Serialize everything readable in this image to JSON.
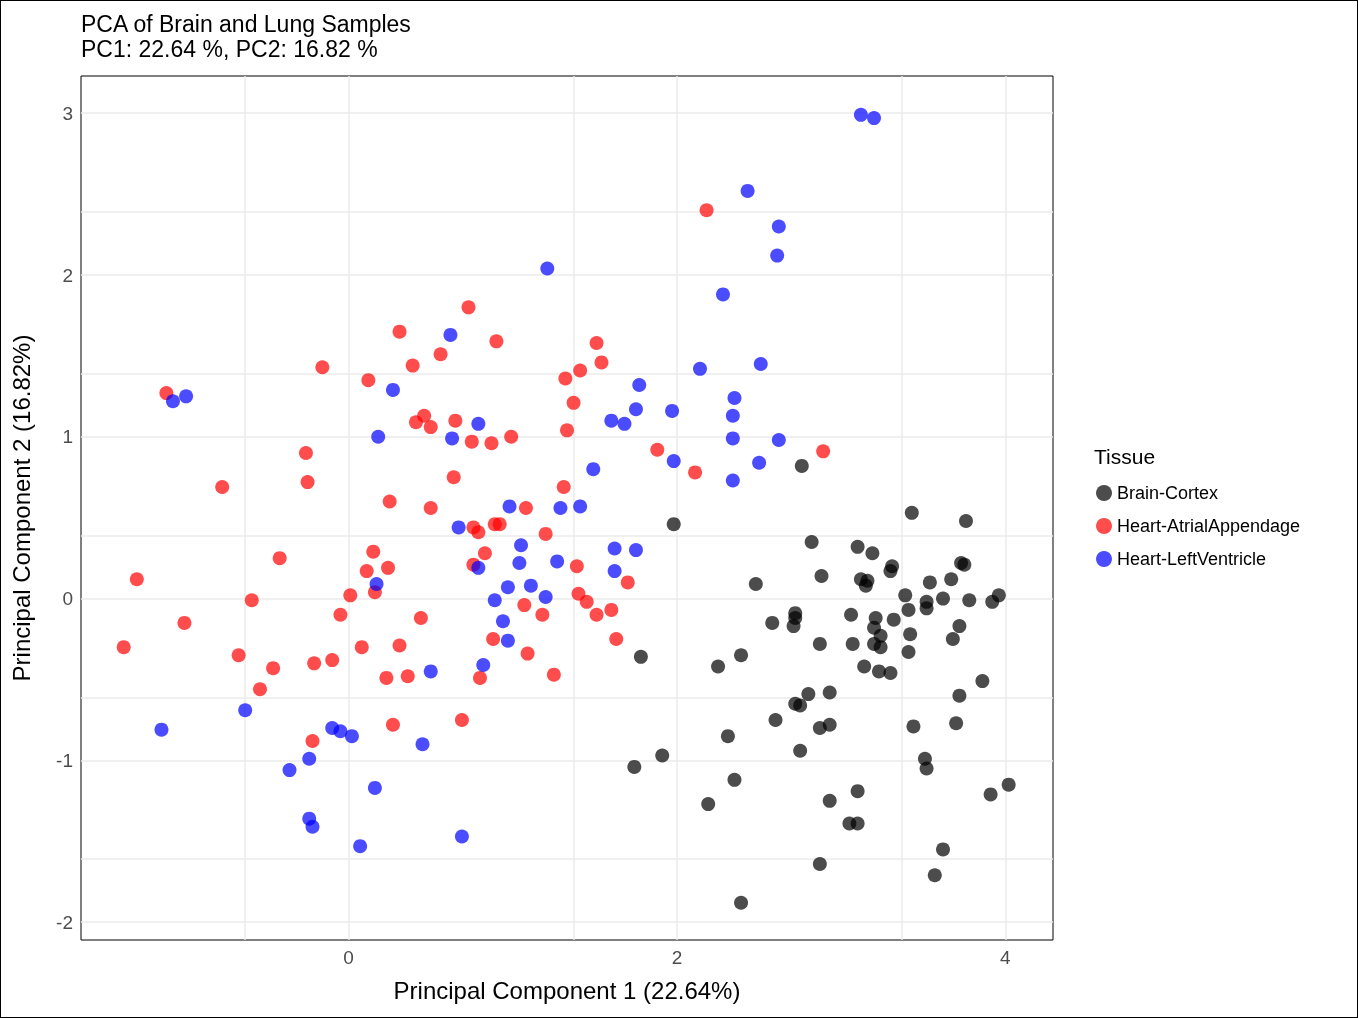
{
  "chart_data": {
    "type": "scatter",
    "title": "PCA of Brain and Lung Samples",
    "subtitle": "PC1: 22.64 %, PC2: 16.82 %",
    "xlabel": "Principal Component 1 (22.64%)",
    "ylabel": "Principal Component 2 (16.82%)",
    "legend_title": "Tissue",
    "legend": "right",
    "grid": true,
    "marker": "circle",
    "xlim": [
      -1.63,
      4.29
    ],
    "ylim": [
      -2.11,
      3.23
    ],
    "xticks": [
      0,
      2,
      4
    ],
    "yticks": [
      -2,
      -1,
      0,
      1,
      2,
      3
    ],
    "series": [
      {
        "name": "Brain-Cortex",
        "color": "#000000",
        "x": [
          2.76,
          1.98,
          2.82,
          3.1,
          3.19,
          3.31,
          3.3,
          3.75,
          3.73,
          3.43,
          3.76,
          2.48,
          2.88,
          3.12,
          3.15,
          3.16,
          3.39,
          3.54,
          3.67,
          3.62,
          3.96,
          3.92,
          3.78,
          3.52,
          3.52,
          3.41,
          3.21,
          3.32,
          3.06,
          2.58,
          2.72,
          2.72,
          2.71,
          3.07,
          3.2,
          3.24,
          3.24,
          3.2,
          3.42,
          3.41,
          2.87,
          3.14,
          3.23,
          3.3,
          2.25,
          2.39,
          1.78,
          3.72,
          3.68,
          3.86,
          3.72,
          2.72,
          2.75,
          2.8,
          2.93,
          2.6,
          2.93,
          2.87,
          3.44,
          3.7,
          2.31,
          2.75,
          1.91,
          1.74,
          3.51,
          3.52,
          2.35,
          2.19,
          3.1,
          2.93,
          3.91,
          4.02,
          3.05,
          3.1,
          3.62,
          2.87,
          3.57,
          2.39
        ],
        "values": [
          0.82,
          0.46,
          0.35,
          0.32,
          0.28,
          0.2,
          0.17,
          0.21,
          0.22,
          0.53,
          0.48,
          0.09,
          0.14,
          0.12,
          0.08,
          0.11,
          0.02,
          0.1,
          0.12,
          0.0,
          0.02,
          -0.02,
          -0.01,
          -0.02,
          -0.06,
          -0.07,
          -0.12,
          -0.13,
          -0.1,
          -0.15,
          -0.09,
          -0.12,
          -0.17,
          -0.28,
          -0.28,
          -0.3,
          -0.23,
          -0.18,
          -0.22,
          -0.33,
          -0.28,
          -0.42,
          -0.45,
          -0.46,
          -0.42,
          -0.35,
          -0.36,
          -0.17,
          -0.25,
          -0.51,
          -0.6,
          -0.65,
          -0.66,
          -0.59,
          -0.58,
          -0.75,
          -0.78,
          -0.8,
          -0.79,
          -0.77,
          -0.85,
          -0.94,
          -0.97,
          -1.04,
          -0.99,
          -1.05,
          -1.12,
          -1.27,
          -1.19,
          -1.25,
          -1.21,
          -1.15,
          -1.39,
          -1.39,
          -1.55,
          -1.64,
          -1.71,
          -1.88
        ]
      },
      {
        "name": "Heart-AtrialAppendage",
        "color": "#ff0000",
        "x": [
          2.18,
          0.73,
          0.31,
          0.9,
          1.51,
          1.54,
          0.56,
          0.39,
          -0.16,
          0.12,
          1.41,
          1.32,
          -1.11,
          1.37,
          0.46,
          0.41,
          0.5,
          0.65,
          1.33,
          0.99,
          0.87,
          0.75,
          -0.26,
          1.88,
          2.89,
          2.11,
          -0.77,
          -0.25,
          0.64,
          1.31,
          0.25,
          0.5,
          1.08,
          0.89,
          0.92,
          0.76,
          0.79,
          1.2,
          0.15,
          0.83,
          -0.42,
          0.24,
          0.11,
          0.76,
          1.39,
          -1.29,
          1.7,
          0.01,
          0.16,
          1.4,
          1.45,
          -0.59,
          1.07,
          1.6,
          1.51,
          -0.05,
          1.18,
          -1.0,
          0.44,
          1.63,
          0.88,
          -1.37,
          0.08,
          0.31,
          -0.67,
          1.09,
          -0.1,
          -0.21,
          -0.46,
          0.23,
          0.36,
          0.8,
          1.25,
          -0.54,
          0.69,
          0.27,
          -0.22
        ],
        "values": [
          2.4,
          1.8,
          1.65,
          1.59,
          1.58,
          1.46,
          1.51,
          1.44,
          1.43,
          1.35,
          1.41,
          1.36,
          1.27,
          1.21,
          1.13,
          1.09,
          1.06,
          1.1,
          1.04,
          1.0,
          0.96,
          0.97,
          0.9,
          0.92,
          0.91,
          0.78,
          0.69,
          0.72,
          0.75,
          0.69,
          0.6,
          0.56,
          0.56,
          0.46,
          0.46,
          0.44,
          0.41,
          0.4,
          0.29,
          0.28,
          0.25,
          0.19,
          0.17,
          0.21,
          0.2,
          0.12,
          0.1,
          0.02,
          0.04,
          0.03,
          -0.02,
          -0.01,
          -0.04,
          -0.07,
          -0.1,
          -0.1,
          -0.1,
          -0.15,
          -0.12,
          -0.25,
          -0.25,
          -0.3,
          -0.3,
          -0.29,
          -0.35,
          -0.34,
          -0.38,
          -0.4,
          -0.43,
          -0.49,
          -0.48,
          -0.49,
          -0.47,
          -0.56,
          -0.75,
          -0.78,
          -0.88
        ]
      },
      {
        "name": "Heart-LeftVentricle",
        "color": "#0000ff",
        "x": [
          3.12,
          3.2,
          2.43,
          2.62,
          2.61,
          1.21,
          2.28,
          0.62,
          2.51,
          2.14,
          0.27,
          -0.99,
          -1.07,
          1.77,
          2.35,
          1.75,
          1.97,
          2.34,
          0.79,
          1.6,
          1.68,
          0.18,
          0.63,
          2.34,
          2.62,
          1.98,
          2.5,
          1.49,
          2.34,
          0.98,
          1.29,
          1.41,
          0.67,
          1.05,
          1.62,
          1.75,
          1.27,
          1.04,
          0.79,
          1.62,
          0.17,
          1.11,
          0.97,
          1.2,
          0.89,
          0.94,
          0.97,
          0.82,
          0.5,
          -0.63,
          -1.14,
          -0.1,
          -0.05,
          0.02,
          0.45,
          -0.24,
          -0.36,
          0.16,
          -0.24,
          -0.22,
          0.69,
          0.07
        ],
        "values": [
          2.99,
          2.97,
          2.52,
          2.3,
          2.12,
          2.04,
          1.88,
          1.63,
          1.45,
          1.42,
          1.29,
          1.25,
          1.22,
          1.32,
          1.24,
          1.17,
          1.16,
          1.13,
          1.08,
          1.1,
          1.08,
          1.0,
          0.99,
          0.99,
          0.98,
          0.85,
          0.84,
          0.8,
          0.73,
          0.57,
          0.56,
          0.57,
          0.44,
          0.33,
          0.31,
          0.3,
          0.23,
          0.22,
          0.19,
          0.17,
          0.09,
          0.08,
          0.07,
          0.01,
          -0.01,
          -0.14,
          -0.26,
          -0.41,
          -0.45,
          -0.69,
          -0.81,
          -0.8,
          -0.82,
          -0.85,
          -0.9,
          -0.99,
          -1.06,
          -1.17,
          -1.36,
          -1.41,
          -1.47,
          -1.53
        ]
      }
    ]
  }
}
